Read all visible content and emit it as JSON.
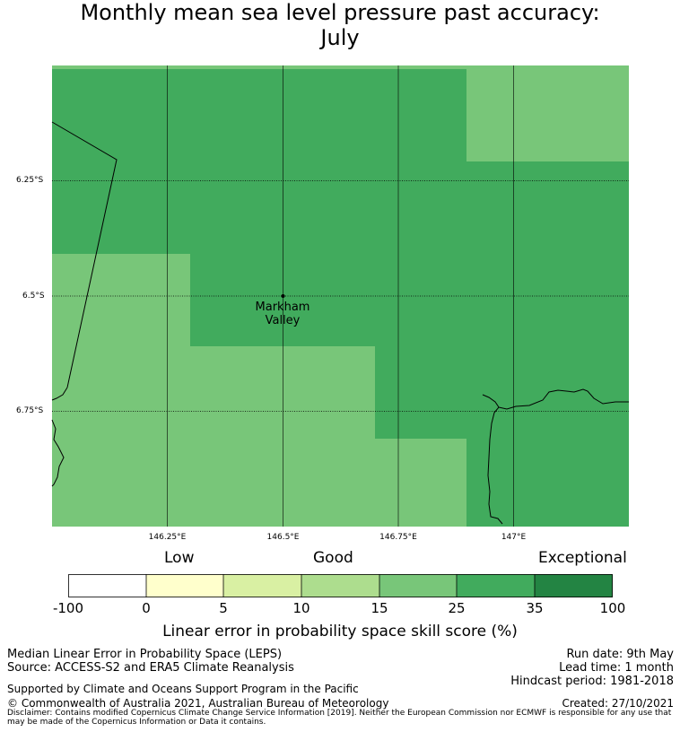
{
  "title": {
    "line1": "Monthly mean sea level pressure past accuracy:",
    "line2": "July"
  },
  "map": {
    "lat_labels": [
      "6.25°S",
      "6.5°S",
      "6.75°S"
    ],
    "lon_labels": [
      "146.25°E",
      "146.5°E",
      "146.75°E",
      "147°E"
    ],
    "location": {
      "name_line1": "Markham",
      "name_line2": "Valley"
    },
    "colors": {
      "band_25_35": "#41ab5d",
      "band_15_25": "#78c679",
      "grid_line": "#000000",
      "coastline": "#000000"
    }
  },
  "legend": {
    "category_labels": {
      "low": "Low",
      "good": "Good",
      "exceptional": "Exceptional"
    },
    "ticks": [
      "-100",
      "0",
      "5",
      "10",
      "15",
      "25",
      "35",
      "100"
    ],
    "colors": [
      "#ffffff",
      "#ffffcc",
      "#d9f0a3",
      "#addd8e",
      "#78c679",
      "#41ab5d",
      "#238443"
    ],
    "title": "Linear error in probability space skill score (%)"
  },
  "footer": {
    "method": "Median Linear Error in Probability Space (LEPS)",
    "source": "Source: ACCESS-S2 and ERA5 Climate Reanalysis",
    "run_date": "Run date: 9th May",
    "lead_time": "Lead time: 1 month",
    "hindcast": "Hindcast period: 1981-2018",
    "support": "Supported by Climate and Oceans Support Program in the Pacific",
    "copyright": "© Commonwealth of Australia 2021, Australian Bureau of Meteorology",
    "created": "Created: 27/10/2021",
    "disclaimer": "Disclaimer: Contains modified Copernicus Climate Change Service Information [2019]. Neither the European Commission nor ECMWF is responsible for any use that may be made of the Copernicus Information or Data it contains."
  }
}
